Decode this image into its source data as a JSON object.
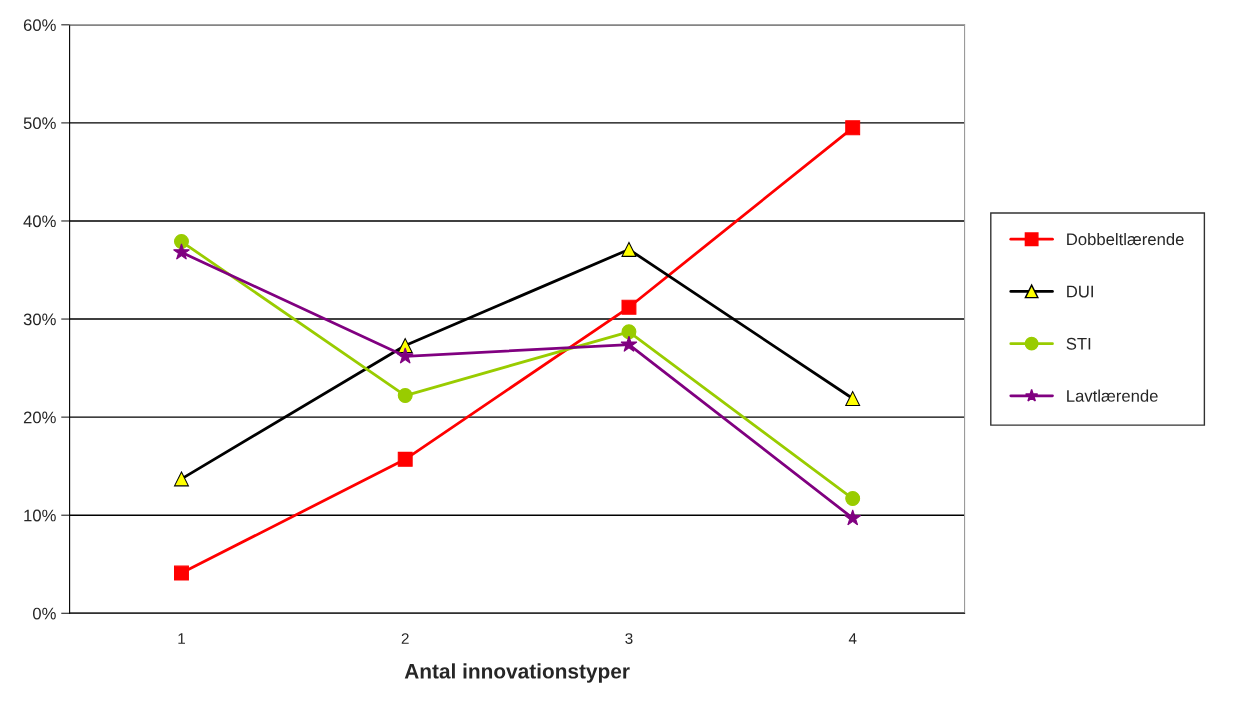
{
  "chart_data": {
    "type": "line",
    "xlabel": "Antal innovationstyper",
    "categories": [
      "1",
      "2",
      "3",
      "4"
    ],
    "series": [
      {
        "name": "Dobbeltlærende",
        "color": "#ff0000",
        "marker": "square",
        "values": [
          4.1,
          15.7,
          31.2,
          49.5
        ]
      },
      {
        "name": "DUI",
        "color": "#000000",
        "marker": "triangle",
        "values": [
          13.7,
          27.3,
          37.1,
          21.9
        ]
      },
      {
        "name": "STI",
        "color": "#99cc00",
        "marker": "circle",
        "values": [
          37.9,
          22.2,
          28.7,
          11.7
        ]
      },
      {
        "name": "Lavtlærende",
        "color": "#800080",
        "marker": "star",
        "values": [
          36.8,
          26.2,
          27.4,
          9.7
        ]
      }
    ],
    "ylim": [
      0,
      60
    ],
    "yticks": [
      {
        "value": 0,
        "label": "0%"
      },
      {
        "value": 10,
        "label": "10%"
      },
      {
        "value": 20,
        "label": "20%"
      },
      {
        "value": 30,
        "label": "30%"
      },
      {
        "value": 40,
        "label": "40%"
      },
      {
        "value": 50,
        "label": "50%"
      },
      {
        "value": 60,
        "label": "60%"
      }
    ],
    "grid": "y",
    "legend": "right",
    "line_style": "solid"
  }
}
